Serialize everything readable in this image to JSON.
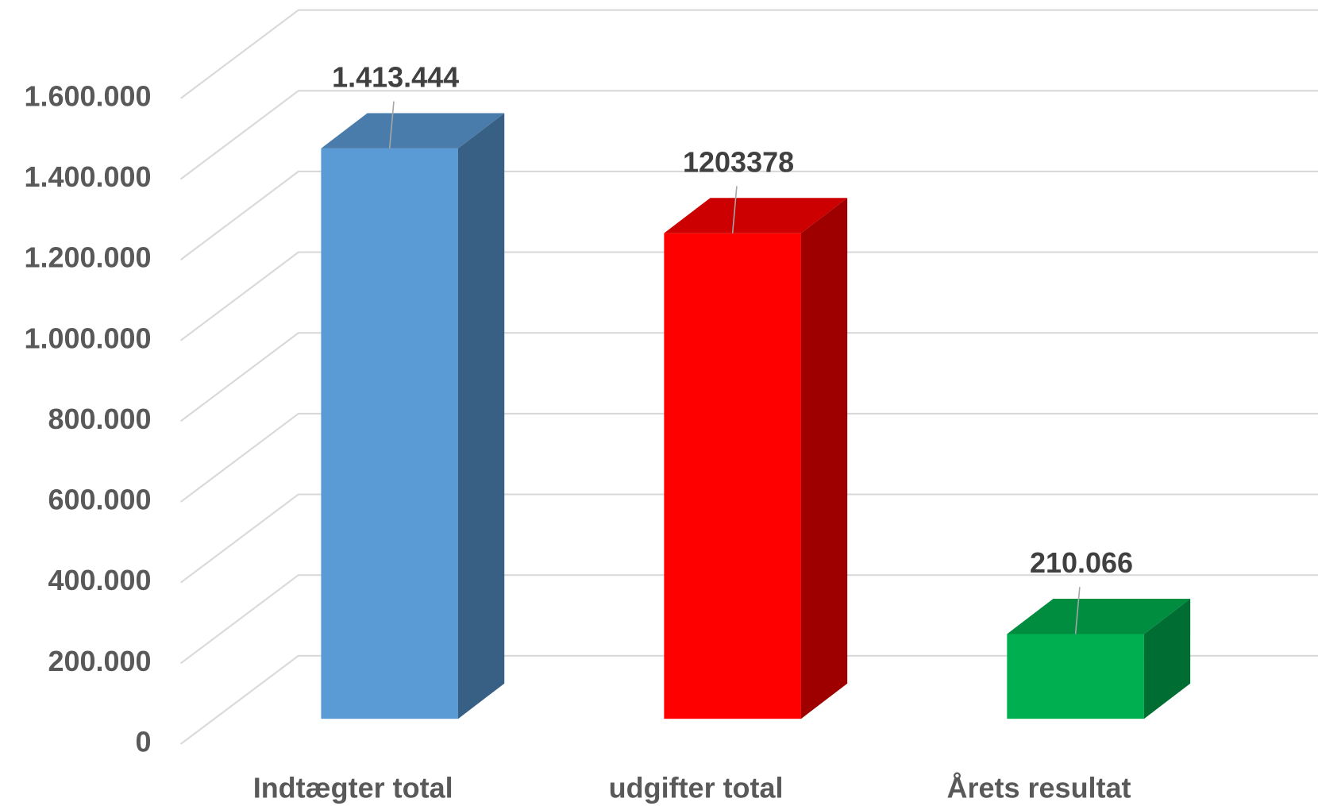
{
  "chart_data": {
    "type": "bar",
    "categories": [
      "Indtægter total",
      "udgifter total",
      "Årets resultat"
    ],
    "values": [
      1413444,
      1203378,
      210066
    ],
    "value_labels": [
      "1.413.444",
      "1203378",
      "210.066"
    ],
    "colors": [
      "#5b9bd5",
      "#ff0000",
      "#00b050"
    ],
    "ylim": [
      0,
      1600000
    ],
    "yticks": [
      0,
      {
        "value": 200000,
        "label": "200.000"
      },
      {
        "value": 400000,
        "label": "400.000"
      },
      {
        "value": 600000,
        "label": "600.000"
      },
      {
        "value": 800000,
        "label": "800.000"
      },
      {
        "value": 1000000,
        "label": "1.000.000"
      },
      {
        "value": 1200000,
        "label": "1.200.000"
      },
      {
        "value": 1400000,
        "label": "1.400.000"
      },
      {
        "value": 1600000,
        "label": "1.600.000"
      }
    ],
    "grid": true
  }
}
